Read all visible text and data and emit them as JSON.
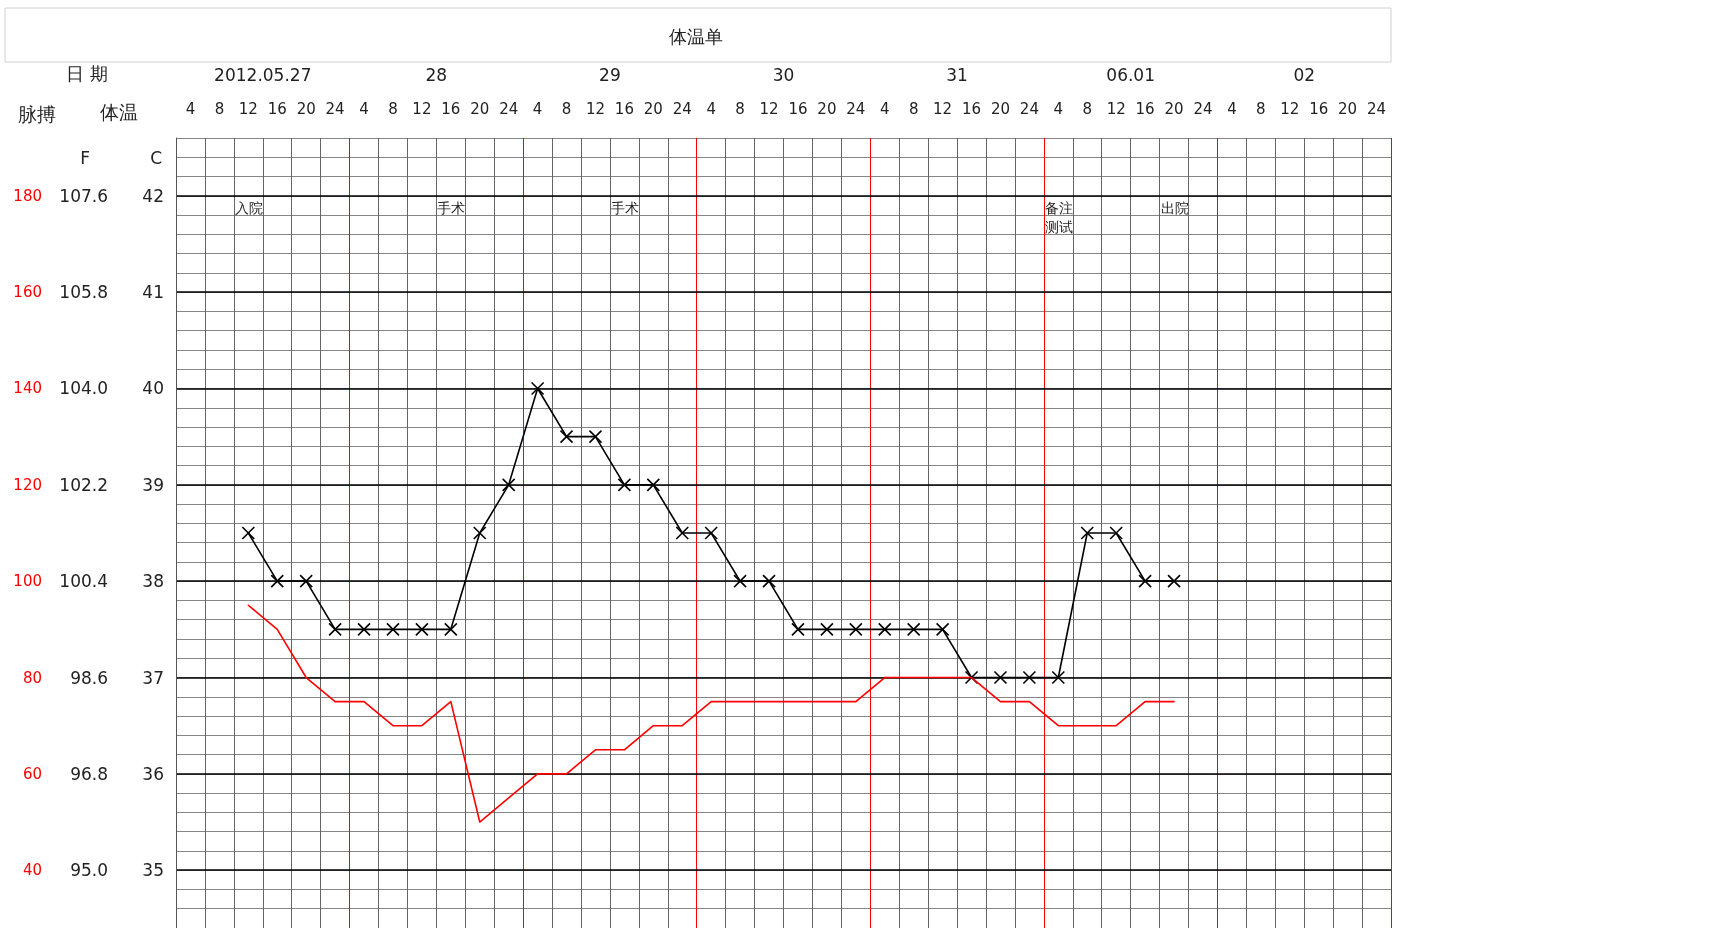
{
  "chart_data": {
    "type": "line",
    "title": "体温单",
    "xlabel": "日 期",
    "ylabel": "C",
    "y2label": "F",
    "y3label": "脉搏",
    "annotations": [
      "体温",
      "2012.05.27",
      "28",
      "29",
      "30",
      "31",
      "06.01",
      "02",
      "入院",
      "手术",
      "手术",
      "备注测试",
      "出院"
    ],
    "categories": [
      "4",
      "8",
      "12",
      "16",
      "20",
      "24",
      "4",
      "8",
      "12",
      "16",
      "20",
      "24",
      "4",
      "8",
      "12",
      "16",
      "20",
      "24",
      "4",
      "8",
      "12",
      "16",
      "20",
      "24",
      "4",
      "8",
      "12",
      "16",
      "20",
      "24",
      "4",
      "8",
      "12",
      "16",
      "20",
      "24",
      "4",
      "8",
      "12",
      "16",
      "20",
      "24"
    ],
    "series": [
      {
        "color": "#000000",
        "marker": "cross",
        "values": [
          null,
          null,
          38.5,
          38,
          38,
          37.5,
          37.5,
          37.5,
          37.5,
          37.5,
          38.5,
          39,
          40,
          39.5,
          39.5,
          39,
          39,
          38.5,
          38.5,
          38,
          38,
          37.5,
          37.5,
          37.5,
          37.5,
          37.5,
          37.5,
          37,
          37,
          37,
          37,
          38.5,
          38.5,
          38,
          38,
          null,
          null,
          null,
          null,
          null,
          null,
          null
        ]
      },
      {
        "color": "#ff0000",
        "marker": "none",
        "axis": "y3",
        "values": [
          null,
          null,
          95,
          90,
          80,
          75,
          75,
          70,
          70,
          75,
          50,
          55,
          60,
          60,
          65,
          65,
          70,
          70,
          75,
          75,
          75,
          75,
          75,
          75,
          80,
          80,
          80,
          80,
          75,
          75,
          70,
          70,
          70,
          75,
          75,
          null,
          null,
          null,
          null,
          null,
          null,
          null
        ]
      }
    ],
    "ylim": [
      34.4,
      42.6
    ],
    "yticks": [
      35,
      36,
      37,
      38,
      39,
      40,
      41,
      42
    ],
    "y3lim": [
      28,
      192
    ],
    "y3ticks": [
      40,
      60,
      80,
      100,
      120,
      140,
      160,
      180
    ],
    "y2lim": [
      93.92,
      108.68
    ],
    "y2ticks": [
      {
        "value": 95,
        "label": "95.0"
      },
      {
        "value": 96.8,
        "label": "96.8"
      },
      {
        "value": 98.6,
        "label": "98.6"
      },
      {
        "value": 100.4,
        "label": "100.4"
      },
      {
        "value": 102.2,
        "label": "102.2"
      },
      {
        "value": 104,
        "label": "104.0"
      },
      {
        "value": 105.8,
        "label": "105.8"
      },
      {
        "value": 107.6,
        "label": "107.6"
      }
    ],
    "grid": true,
    "line_style": "solid"
  }
}
